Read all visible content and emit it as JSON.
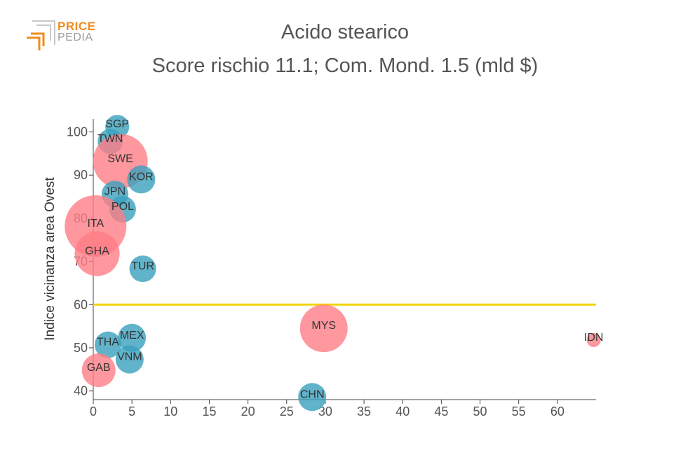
{
  "brand": {
    "line1": "PRICE",
    "line2": "PEDIA",
    "accent": "#f08c1e",
    "grey": "#9a9a9a"
  },
  "chart_data": {
    "type": "scatter",
    "title": "Acido stearico",
    "subtitle": "Score rischio 11.1; Com. Mond. 1.5 (mld $)",
    "xlabel": "",
    "ylabel": "Indice vicinanza area Ovest",
    "xlim": [
      0,
      65
    ],
    "ylim": [
      38,
      103
    ],
    "x_ticks": [
      0,
      5,
      10,
      15,
      20,
      25,
      30,
      35,
      40,
      45,
      50,
      55,
      60
    ],
    "y_ticks": [
      40,
      50,
      60,
      70,
      80,
      90,
      100
    ],
    "reference_line": {
      "y": 60,
      "color": "#f2d40c"
    },
    "colors": {
      "blue": "#3aa0bd",
      "red": "#ff7d86"
    },
    "points": [
      {
        "label": "SGP",
        "x": 3.1,
        "y": 101.2,
        "size": 17,
        "color": "blue"
      },
      {
        "label": "TWN",
        "x": 2.2,
        "y": 97.8,
        "size": 18,
        "color": "blue"
      },
      {
        "label": "SWE",
        "x": 3.5,
        "y": 93.2,
        "size": 39,
        "color": "red"
      },
      {
        "label": "KOR",
        "x": 6.2,
        "y": 89.0,
        "size": 20,
        "color": "blue"
      },
      {
        "label": "JPN",
        "x": 2.8,
        "y": 85.6,
        "size": 19,
        "color": "blue"
      },
      {
        "label": "POL",
        "x": 3.8,
        "y": 82.1,
        "size": 19,
        "color": "blue"
      },
      {
        "label": "ITA",
        "x": 0.3,
        "y": 78.2,
        "size": 44,
        "color": "red"
      },
      {
        "label": "GHA",
        "x": 0.5,
        "y": 71.8,
        "size": 32,
        "color": "red"
      },
      {
        "label": "TUR",
        "x": 6.4,
        "y": 68.3,
        "size": 19,
        "color": "blue"
      },
      {
        "label": "MYS",
        "x": 29.8,
        "y": 54.5,
        "size": 34,
        "color": "red"
      },
      {
        "label": "IDN",
        "x": 64.7,
        "y": 51.8,
        "size": 10,
        "color": "red"
      },
      {
        "label": "MEX",
        "x": 5.0,
        "y": 52.3,
        "size": 20,
        "color": "blue"
      },
      {
        "label": "THA",
        "x": 1.9,
        "y": 50.7,
        "size": 19,
        "color": "blue"
      },
      {
        "label": "VNM",
        "x": 4.7,
        "y": 47.3,
        "size": 20,
        "color": "blue"
      },
      {
        "label": "GAB",
        "x": 0.7,
        "y": 44.8,
        "size": 24,
        "color": "red"
      },
      {
        "label": "CHN",
        "x": 28.3,
        "y": 38.6,
        "size": 20,
        "color": "blue"
      }
    ]
  }
}
